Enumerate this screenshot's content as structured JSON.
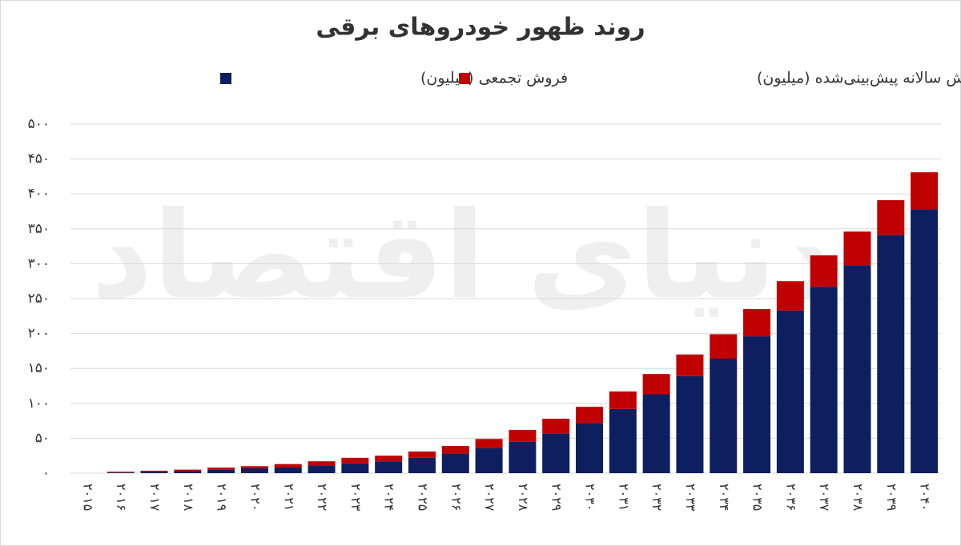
{
  "chart_data": {
    "type": "stacked_bar",
    "title": "روند ظهور خودروهای برقی",
    "watermark": "دنیای اقتصاد",
    "categories": [
      "۲۰۱۵",
      "۲۰۱۶",
      "۲۰۱۷",
      "۲۰۱۸",
      "۲۰۱۹",
      "۲۰۲۰",
      "۲۰۲۱",
      "۲۰۲۲",
      "۲۰۲۳",
      "۲۰۲۴",
      "۲۰۲۵",
      "۲۰۲۶",
      "۲۰۲۷",
      "۲۰۲۸",
      "۲۰۲۹",
      "۲۰۳۰",
      "۲۰۳۱",
      "۲۰۳۲",
      "۲۰۳۳",
      "۲۰۳۴",
      "۲۰۳۵",
      "۲۰۳۶",
      "۲۰۳۷",
      "۲۰۳۸",
      "۲۰۳۹",
      "۲۰۴۰"
    ],
    "series": [
      {
        "name": "فروش تجمعی (میلیون)",
        "color": "#0d1f5e",
        "values": [
          0,
          1,
          2,
          3,
          5,
          7,
          8,
          11,
          14,
          17,
          22,
          28,
          36,
          45,
          57,
          72,
          92,
          113,
          139,
          164,
          196,
          233,
          267,
          298,
          341,
          378
        ]
      },
      {
        "name": "فروش سالانه پیش‌بینی‌شده (میلیون)",
        "color": "#c00000",
        "values": [
          0,
          1,
          1.5,
          2,
          3,
          3,
          5,
          6,
          8,
          8,
          9,
          11,
          13,
          17,
          21,
          23,
          25,
          29,
          31,
          35,
          39,
          42,
          45,
          48,
          50,
          53
        ]
      }
    ],
    "ylim": [
      0,
      500
    ],
    "yticks": [
      {
        "value": 0,
        "label": "۰"
      },
      {
        "value": 50,
        "label": "۵۰"
      },
      {
        "value": 100,
        "label": "۱۰۰"
      },
      {
        "value": 150,
        "label": "۱۵۰"
      },
      {
        "value": 200,
        "label": "۲۰۰"
      },
      {
        "value": 250,
        "label": "۲۵۰"
      },
      {
        "value": 300,
        "label": "۳۰۰"
      },
      {
        "value": 350,
        "label": "۳۵۰"
      },
      {
        "value": 400,
        "label": "۴۰۰"
      },
      {
        "value": 450,
        "label": "۴۵۰"
      },
      {
        "value": 500,
        "label": "۵۰۰"
      }
    ],
    "grid": true
  }
}
